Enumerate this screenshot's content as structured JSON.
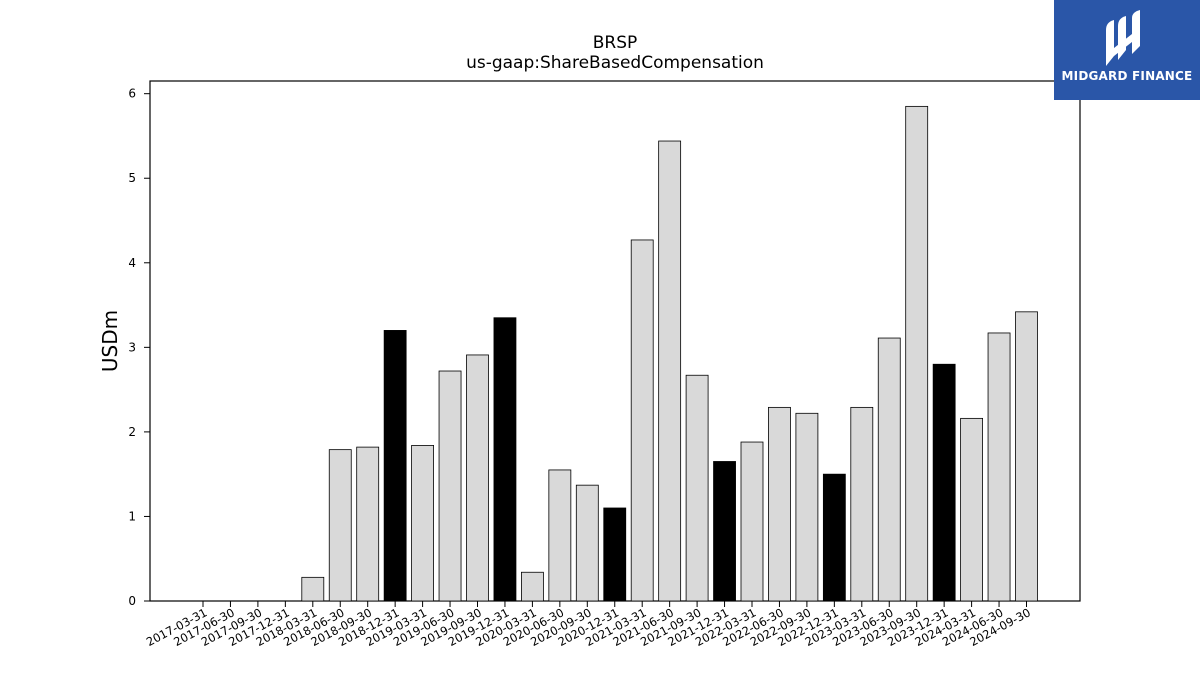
{
  "chart_data": {
    "type": "bar",
    "title": "BRSP",
    "subtitle": "us-gaap:ShareBasedCompensation",
    "xlabel": "",
    "ylabel": "USDm",
    "ylim": [
      0,
      6.15
    ],
    "yticks": [
      0,
      1,
      2,
      3,
      4,
      5,
      6
    ],
    "grid": false,
    "categories": [
      "2017-03-31",
      "2017-06-30",
      "2017-09-30",
      "2017-12-31",
      "2018-03-31",
      "2018-06-30",
      "2018-09-30",
      "2018-12-31",
      "2019-03-31",
      "2019-06-30",
      "2019-09-30",
      "2019-12-31",
      "2020-03-31",
      "2020-06-30",
      "2020-09-30",
      "2020-12-31",
      "2021-03-31",
      "2021-06-30",
      "2021-09-30",
      "2021-12-31",
      "2022-03-31",
      "2022-06-30",
      "2022-09-30",
      "2022-12-31",
      "2023-03-31",
      "2023-06-30",
      "2023-09-30",
      "2023-12-31",
      "2024-03-31",
      "2024-06-30",
      "2024-09-30"
    ],
    "values": [
      0,
      0,
      0,
      0,
      0.28,
      1.79,
      1.82,
      3.2,
      1.84,
      2.72,
      2.91,
      3.35,
      0.34,
      1.55,
      1.37,
      1.1,
      4.27,
      5.44,
      2.67,
      1.65,
      1.88,
      2.29,
      2.22,
      1.5,
      2.29,
      3.11,
      5.85,
      2.8,
      2.16,
      3.17,
      3.42
    ],
    "highlight": [
      false,
      false,
      false,
      false,
      false,
      false,
      false,
      true,
      false,
      false,
      false,
      true,
      false,
      false,
      false,
      true,
      false,
      false,
      false,
      true,
      false,
      false,
      false,
      true,
      false,
      false,
      false,
      true,
      false,
      false,
      false
    ],
    "colors": {
      "bar": "#d9d9d9",
      "highlight": "#000000",
      "edge": "#000000"
    }
  },
  "logo": {
    "text": "MIDGARD FINANCE",
    "background": "#2a56a8"
  }
}
